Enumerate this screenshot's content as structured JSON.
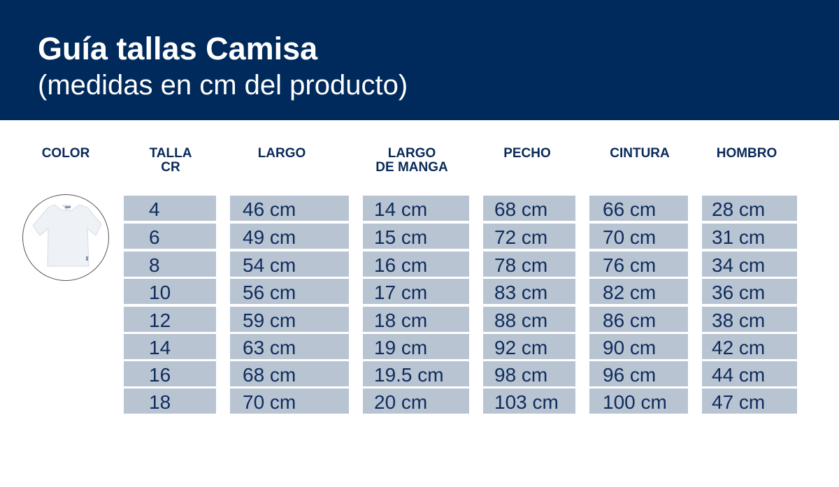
{
  "header": {
    "title": "Guía tallas Camisa",
    "subtitle": "(medidas en cm del producto)"
  },
  "columns": [
    "COLOR",
    "TALLA\nCR",
    "LARGO",
    "LARGO\nDE MANGA",
    "PECHO",
    "CINTURA",
    "HOMBRO"
  ],
  "color_image": "white-polo-shirt",
  "rows": [
    [
      "4",
      "46 cm",
      "14 cm",
      "68 cm",
      "66 cm",
      "28 cm"
    ],
    [
      "6",
      "49 cm",
      "15 cm",
      "72 cm",
      "70 cm",
      "31 cm"
    ],
    [
      "8",
      "54 cm",
      "16 cm",
      "78 cm",
      "76 cm",
      "34 cm"
    ],
    [
      "10",
      "56 cm",
      "17 cm",
      "83 cm",
      "82 cm",
      "36 cm"
    ],
    [
      "12",
      "59 cm",
      "18 cm",
      "88 cm",
      "86 cm",
      "38 cm"
    ],
    [
      "14",
      "63 cm",
      "19 cm",
      "92 cm",
      "90 cm",
      "42 cm"
    ],
    [
      "16",
      "68 cm",
      "19.5 cm",
      "98 cm",
      "96 cm",
      "44 cm"
    ],
    [
      "18",
      "70 cm",
      "20 cm",
      "103 cm",
      "100 cm",
      "47 cm"
    ]
  ],
  "colors": {
    "header": "#002a5c",
    "cell": "#b8c4d2",
    "text": "#0f2c5c"
  }
}
